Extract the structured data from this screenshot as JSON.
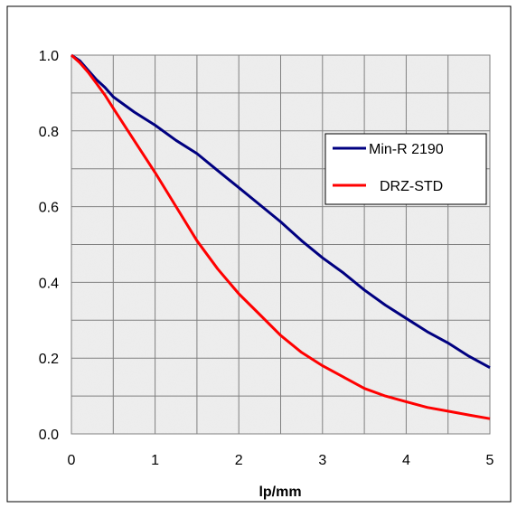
{
  "chart_data": {
    "type": "line",
    "xlabel": "lp/mm",
    "ylabel": "",
    "xlim": [
      0,
      5
    ],
    "ylim": [
      0,
      1.0
    ],
    "x_ticks": [
      "0",
      "1",
      "2",
      "3",
      "4",
      "5"
    ],
    "y_ticks": [
      "0.0",
      "0.2",
      "0.4",
      "0.6",
      "0.8",
      "1.0"
    ],
    "grid": true,
    "legend_position": "right",
    "series": [
      {
        "name": "Min-R 2190",
        "color": "#000080",
        "points": [
          [
            0.0,
            1.0
          ],
          [
            0.1,
            0.985
          ],
          [
            0.2,
            0.96
          ],
          [
            0.3,
            0.935
          ],
          [
            0.4,
            0.915
          ],
          [
            0.5,
            0.89
          ],
          [
            0.75,
            0.85
          ],
          [
            1.0,
            0.815
          ],
          [
            1.25,
            0.775
          ],
          [
            1.5,
            0.74
          ],
          [
            1.75,
            0.695
          ],
          [
            2.0,
            0.65
          ],
          [
            2.25,
            0.605
          ],
          [
            2.5,
            0.56
          ],
          [
            2.75,
            0.51
          ],
          [
            3.0,
            0.465
          ],
          [
            3.25,
            0.425
          ],
          [
            3.5,
            0.38
          ],
          [
            3.75,
            0.34
          ],
          [
            4.0,
            0.305
          ],
          [
            4.25,
            0.27
          ],
          [
            4.5,
            0.24
          ],
          [
            4.75,
            0.205
          ],
          [
            5.0,
            0.175
          ]
        ]
      },
      {
        "name": "DRZ-STD",
        "color": "#ff0000",
        "points": [
          [
            0.0,
            1.0
          ],
          [
            0.1,
            0.98
          ],
          [
            0.2,
            0.955
          ],
          [
            0.3,
            0.925
          ],
          [
            0.4,
            0.895
          ],
          [
            0.5,
            0.86
          ],
          [
            0.75,
            0.775
          ],
          [
            1.0,
            0.69
          ],
          [
            1.25,
            0.6
          ],
          [
            1.5,
            0.51
          ],
          [
            1.75,
            0.435
          ],
          [
            2.0,
            0.37
          ],
          [
            2.25,
            0.315
          ],
          [
            2.5,
            0.26
          ],
          [
            2.75,
            0.215
          ],
          [
            3.0,
            0.18
          ],
          [
            3.25,
            0.15
          ],
          [
            3.5,
            0.12
          ],
          [
            3.75,
            0.1
          ],
          [
            4.0,
            0.085
          ],
          [
            4.25,
            0.07
          ],
          [
            4.5,
            0.06
          ],
          [
            4.75,
            0.05
          ],
          [
            5.0,
            0.04
          ]
        ]
      }
    ]
  }
}
